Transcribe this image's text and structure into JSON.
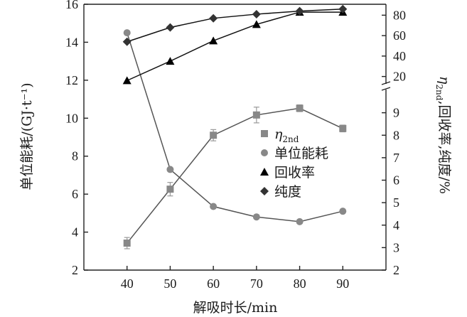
{
  "chart_data": {
    "type": "line",
    "x": [
      40,
      50,
      60,
      70,
      80,
      90
    ],
    "x_ticks": [
      "40",
      "50",
      "60",
      "70",
      "80",
      "90"
    ],
    "xlabel": "解吸时长/min",
    "xlim": [
      30,
      100
    ],
    "left_axis": {
      "label": "单位能耗/(GJ·t⁻¹)",
      "range": [
        2,
        16
      ],
      "ticks": [
        "2",
        "4",
        "6",
        "8",
        "10",
        "12",
        "14",
        "16"
      ]
    },
    "right_axis": {
      "label_main": "η",
      "label_sub": "2nd",
      "label_rest": ",回收率,纯度/%",
      "lower_range": [
        2,
        10
      ],
      "lower_ticks": [
        "2",
        "3",
        "4",
        "5",
        "6",
        "7",
        "8",
        "9"
      ],
      "upper_range": [
        10,
        90
      ],
      "upper_ticks": [
        "20",
        "40",
        "60",
        "80"
      ],
      "axis_break": true
    },
    "series": [
      {
        "name_main": "η",
        "name_sub": "2nd",
        "axis": "right-lower",
        "marker": "square",
        "color": "#888888",
        "values": [
          3.2,
          5.6,
          8.0,
          8.9,
          9.2,
          8.3
        ],
        "error": [
          0.25,
          0.3,
          0.25,
          0.35,
          0.15,
          0.15
        ]
      },
      {
        "name": "单位能耗",
        "axis": "left",
        "marker": "circle",
        "color": "#888888",
        "values": [
          14.5,
          7.3,
          5.35,
          4.8,
          4.55,
          5.1
        ]
      },
      {
        "name": "回收率",
        "axis": "right-upper",
        "marker": "triangle",
        "color": "#000000",
        "values": [
          16,
          35,
          55,
          71,
          83,
          83
        ]
      },
      {
        "name": "纯度",
        "axis": "right-upper",
        "marker": "diamond",
        "color": "#333333",
        "values": [
          54,
          68,
          77,
          81,
          84,
          86
        ]
      }
    ],
    "grid": false,
    "legend_position": "center-right"
  }
}
